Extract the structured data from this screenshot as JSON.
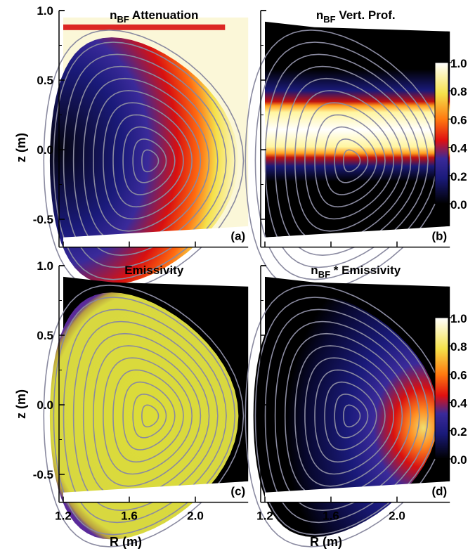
{
  "figure": {
    "panels": [
      {
        "id": "a",
        "title_main": "n",
        "title_sub": "BF",
        "title_rest": " Attenuation",
        "tag": "(a)",
        "type": "attenuation"
      },
      {
        "id": "b",
        "title_main": "n",
        "title_sub": "BF",
        "title_rest": " Vert. Prof.",
        "tag": "(b)",
        "type": "vertical"
      },
      {
        "id": "c",
        "title_main": "",
        "title_sub": "",
        "title_rest": "Emissivity",
        "tag": "(c)",
        "type": "emissivity"
      },
      {
        "id": "d",
        "title_main": "n",
        "title_sub": "BF",
        "title_rest": " * Emissivity",
        "tag": "(d)",
        "type": "product"
      }
    ],
    "ylabel": "z (m)",
    "xlabel": "R (m)",
    "yticks": [
      "1.0",
      "0.5",
      "0.0",
      "-0.5"
    ],
    "xticks": [
      "1.2",
      "1.6",
      "2.0"
    ],
    "colorbar_ticks": [
      "1.0",
      "0.8",
      "0.6",
      "0.4",
      "0.2",
      "0.0"
    ]
  },
  "chart_data": [
    {
      "type": "heatmap",
      "title": "nBF Attenuation",
      "xlim": [
        1.2,
        2.3
      ],
      "ylim": [
        -0.7,
        1.0
      ],
      "xlabel": "",
      "ylabel": "z (m)",
      "xticks": [
        1.2,
        1.6,
        2.0
      ],
      "yticks": [
        -0.5,
        0.0,
        0.5,
        1.0
      ],
      "magnetic_axis": [
        1.69,
        -0.08
      ],
      "description": "attenuation increasing toward outer edge"
    },
    {
      "type": "heatmap",
      "title": "nBF Vert. Prof.",
      "xlim": [
        1.2,
        2.3
      ],
      "ylim": [
        -0.7,
        1.0
      ],
      "xlabel": "",
      "ylabel": "",
      "xticks": [
        1.2,
        1.6,
        2.0
      ],
      "yticks": [
        -0.5,
        0.0,
        0.5,
        1.0
      ],
      "peak_z": -0.05,
      "colorbar": {
        "range": [
          0.0,
          1.0
        ],
        "ticks": [
          0.0,
          0.2,
          0.4,
          0.6,
          0.8,
          1.0
        ]
      }
    },
    {
      "type": "heatmap",
      "title": "Emissivity",
      "xlim": [
        1.2,
        2.3
      ],
      "ylim": [
        -0.7,
        1.0
      ],
      "xlabel": "R (m)",
      "ylabel": "z (m)",
      "xticks": [
        1.2,
        1.6,
        2.0
      ],
      "yticks": [
        -0.5,
        0.0,
        0.5,
        1.0
      ],
      "value_inside_plasma": 0.85
    },
    {
      "type": "heatmap",
      "title": "nBF * Emissivity",
      "xlim": [
        1.2,
        2.3
      ],
      "ylim": [
        -0.7,
        1.0
      ],
      "xlabel": "R (m)",
      "ylabel": "",
      "xticks": [
        1.2,
        1.6,
        2.0
      ],
      "yticks": [
        -0.5,
        0.0,
        0.5,
        1.0
      ],
      "peak_location": [
        2.2,
        -0.05
      ],
      "colorbar": {
        "range": [
          0.0,
          1.0
        ],
        "ticks": [
          0.0,
          0.2,
          0.4,
          0.6,
          0.8,
          1.0
        ]
      }
    }
  ]
}
